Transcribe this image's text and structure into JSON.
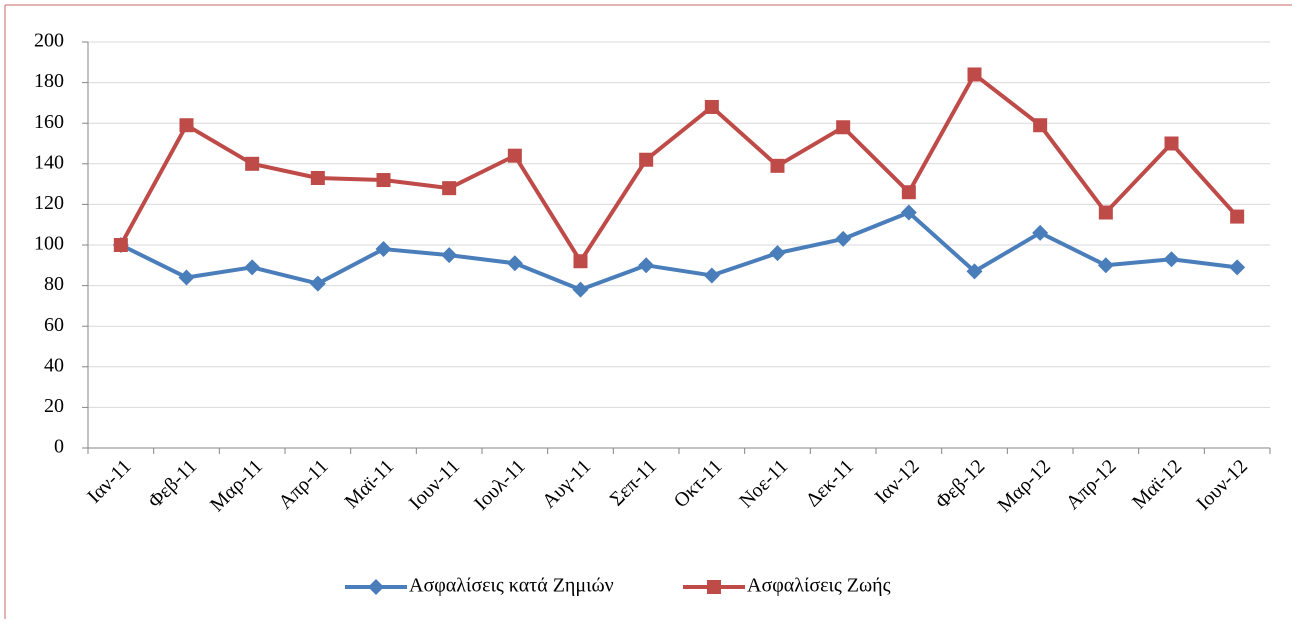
{
  "chart_data": {
    "type": "line",
    "categories": [
      "Ιαν-11",
      "Φεβ-11",
      "Μαρ-11",
      "Απρ-11",
      "Μαϊ-11",
      "Ιουν-11",
      "Ιουλ-11",
      "Αυγ-11",
      "Σεπ-11",
      "Οκτ-11",
      "Νοε-11",
      "Δεκ-11",
      "Ιαν-12",
      "Φεβ-12",
      "Μαρ-12",
      "Απρ-12",
      "Μαϊ-12",
      "Ιουν-12"
    ],
    "series": [
      {
        "name": "Ασφαλίσεις κατά Ζημιών",
        "color": "#4a7ebb",
        "marker": "diamond",
        "values": [
          100,
          84,
          89,
          81,
          98,
          95,
          91,
          78,
          90,
          85,
          96,
          103,
          116,
          87,
          106,
          90,
          93,
          89
        ]
      },
      {
        "name": "Ασφαλίσεις Ζωής",
        "color": "#be4b48",
        "marker": "square",
        "values": [
          100,
          159,
          140,
          133,
          132,
          128,
          144,
          92,
          142,
          168,
          139,
          158,
          126,
          184,
          159,
          116,
          150,
          114
        ]
      }
    ],
    "ylim": [
      0,
      200
    ],
    "yticks": [
      0,
      20,
      40,
      60,
      80,
      100,
      120,
      140,
      160,
      180,
      200
    ],
    "grid": true,
    "legend": "bottom"
  }
}
